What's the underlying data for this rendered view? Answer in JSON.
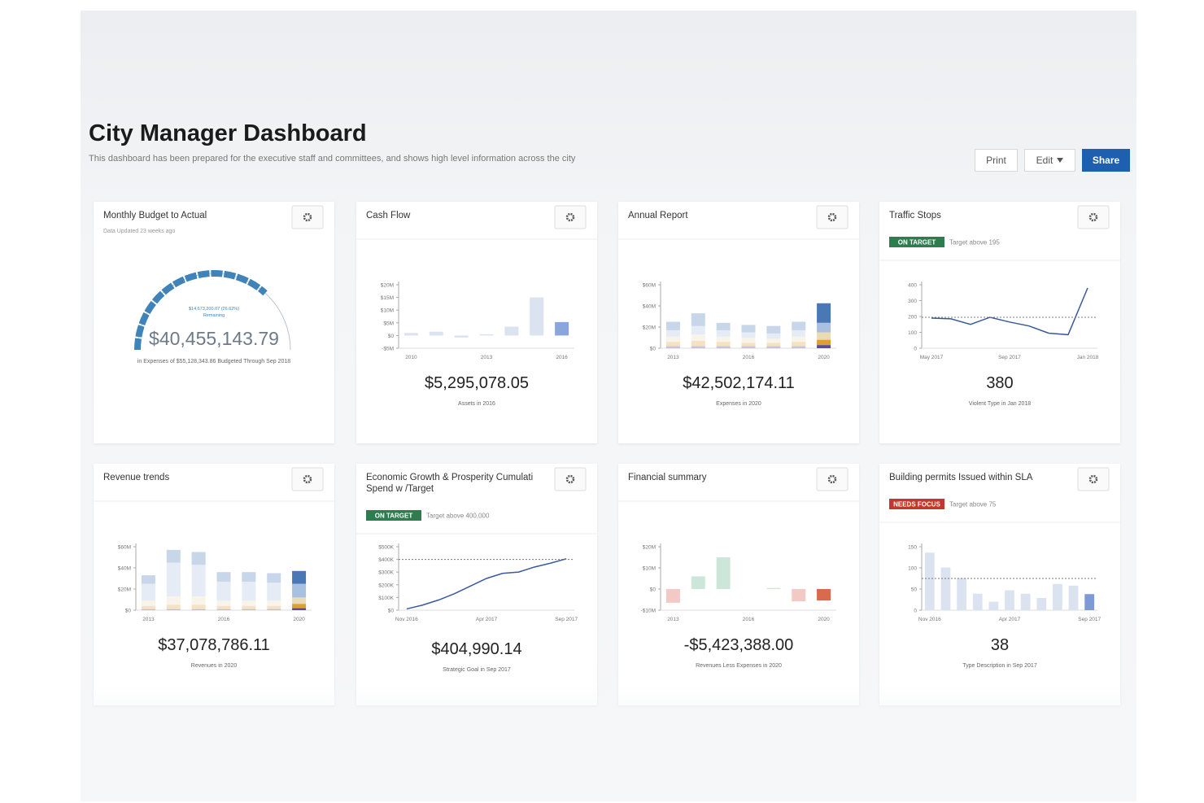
{
  "header": {
    "title": "City Manager Dashboard",
    "subtitle": "This dashboard has been prepared for the executive staff and committees, and shows high level information across the city",
    "buttons": [
      "Print",
      "Edit",
      "Share"
    ]
  },
  "cards": [
    {
      "title": [
        "Monthly Budget to Actual"
      ],
      "subtitle": "Data Updated 23 weeks ago",
      "value": "$40,455,143.79",
      "caption": "in Expenses of $55,128,343.86 Budgeted Through Sep 2018",
      "chart": {
        "type": "gauge",
        "value": 40455143.79,
        "max": 55128343.86,
        "color": "#3f83b8",
        "center_label": "$14,673,200.07 (26.62%)",
        "center_sublabel": "Remaining"
      }
    },
    {
      "title": [
        "Cash Flow"
      ],
      "value": "$5,295,078.05",
      "caption": "Assets in 2016",
      "chart": {
        "type": "bar",
        "categories": [
          "2010",
          null,
          null,
          "2013",
          null,
          null,
          "2016"
        ],
        "values": [
          1000000,
          1500000,
          -800000,
          500000,
          3500000,
          15000000,
          5295078.05
        ],
        "color": "#dbe3f1",
        "highlight_color": "#8aa6dc",
        "ylim": [
          -5000000,
          20000000
        ],
        "yticks": [
          {
            "value": -5000000,
            "label": "-$5M"
          },
          {
            "value": 0,
            "label": "$0"
          },
          {
            "value": 5000000,
            "label": "$5M"
          },
          {
            "value": 10000000,
            "label": "$10M"
          },
          {
            "value": 15000000,
            "label": "$15M"
          },
          {
            "value": 20000000,
            "label": "$20M"
          }
        ]
      }
    },
    {
      "title": [
        "Annual Report"
      ],
      "value": "$42,502,174.11",
      "caption": "Expenses in 2020",
      "chart": {
        "type": "stacked-bar",
        "categories": [
          "2013",
          null,
          null,
          "2016",
          null,
          null,
          "2020"
        ],
        "ylim": [
          0,
          60000000
        ],
        "yticks": [
          {
            "value": 0,
            "label": "$0"
          },
          {
            "value": 20000000,
            "label": "$20M"
          },
          {
            "value": 40000000,
            "label": "$40M"
          },
          {
            "value": 60000000,
            "label": "$60M"
          }
        ],
        "series": [
          {
            "color": "#5b4b9b",
            "values": [
              2000000,
              2000000,
              2000000,
              2000000,
              2000000,
              2000000,
              3000000
            ]
          },
          {
            "color": "#e0a030",
            "values": [
              4000000,
              5000000,
              4000000,
              3000000,
              3000000,
              4000000,
              5000000
            ]
          },
          {
            "color": "#e9dcb5",
            "values": [
              5000000,
              6000000,
              5000000,
              5000000,
              4000000,
              5000000,
              7000000
            ]
          },
          {
            "color": "#a9c0e0",
            "values": [
              6000000,
              8000000,
              6000000,
              5000000,
              5000000,
              6000000,
              9000000
            ]
          },
          {
            "color": "#4a78b5",
            "values": [
              8000000,
              12000000,
              7000000,
              7000000,
              7000000,
              8000000,
              18502174.11
            ]
          }
        ]
      }
    },
    {
      "title": [
        "Traffic Stops"
      ],
      "badge": "ON TARGET",
      "badge_color": "#2e7d4f",
      "target_text": "Target above 195",
      "value": "380",
      "caption": "Violent Type in Jan 2018",
      "chart": {
        "type": "line",
        "categories": [
          "May 2017",
          null,
          null,
          null,
          "Sep 2017",
          null,
          null,
          null,
          "Jan 2018"
        ],
        "values": [
          190,
          185,
          150,
          195,
          165,
          140,
          95,
          85,
          380
        ],
        "target": 195,
        "color": "#3a5a9a",
        "ylim": [
          0,
          400
        ],
        "yticks": [
          0,
          100,
          200,
          300,
          400
        ]
      }
    },
    {
      "title": [
        "Revenue trends"
      ],
      "value": "$37,078,786.11",
      "caption": "Revenues in 2020",
      "chart": {
        "type": "stacked-bar",
        "categories": [
          "2013",
          null,
          null,
          "2016",
          null,
          null,
          "2020"
        ],
        "ylim": [
          0,
          60000000
        ],
        "yticks": [
          {
            "value": 0,
            "label": "$0"
          },
          {
            "value": 20000000,
            "label": "$20M"
          },
          {
            "value": 40000000,
            "label": "$40M"
          },
          {
            "value": 60000000,
            "label": "$60M"
          }
        ],
        "series": [
          {
            "color": "#5b4b9b",
            "values": [
              1000000,
              1000000,
              1000000,
              1000000,
              1000000,
              1000000,
              2000000
            ]
          },
          {
            "color": "#e0a030",
            "values": [
              3000000,
              4000000,
              4000000,
              3000000,
              3000000,
              3000000,
              4000000
            ]
          },
          {
            "color": "#e9dcb5",
            "values": [
              5000000,
              8000000,
              8000000,
              5000000,
              5000000,
              5000000,
              6000000
            ]
          },
          {
            "color": "#a9c0e0",
            "values": [
              16000000,
              32000000,
              30000000,
              18000000,
              18000000,
              17000000,
              13000000
            ]
          },
          {
            "color": "#4a78b5",
            "values": [
              8000000,
              12000000,
              12000000,
              9000000,
              9000000,
              9000000,
              12078786.11
            ]
          }
        ]
      }
    },
    {
      "title": [
        "Economic Growth & Prosperity Cumulati",
        "Spend w /Target"
      ],
      "badge": "ON TARGET",
      "badge_color": "#2e7d4f",
      "target_text": "Target above 400,000",
      "value": "$404,990.14",
      "caption": "Strategic Goal in Sep 2017",
      "chart": {
        "type": "line",
        "categories": [
          "Nov 2016",
          null,
          null,
          null,
          null,
          "Apr 2017",
          null,
          null,
          null,
          null,
          "Sep 2017"
        ],
        "values": [
          10000,
          40000,
          80000,
          130000,
          190000,
          250000,
          290000,
          300000,
          340000,
          370000,
          404990.14
        ],
        "target": 400000,
        "color": "#3a5a9a",
        "ylim": [
          0,
          500000
        ],
        "yticks": [
          {
            "value": 0,
            "label": "$0"
          },
          {
            "value": 100000,
            "label": "$100K"
          },
          {
            "value": 200000,
            "label": "$200K"
          },
          {
            "value": 300000,
            "label": "$300K"
          },
          {
            "value": 400000,
            "label": "$400K"
          },
          {
            "value": 500000,
            "label": "$500K"
          }
        ]
      }
    },
    {
      "title": [
        "Financial summary"
      ],
      "value": "-$5,423,388.00",
      "caption": "Revenues Less Expenses in 2020",
      "chart": {
        "type": "bar",
        "categories": [
          "2013",
          null,
          null,
          "2016",
          null,
          null,
          "2020"
        ],
        "values": [
          -6500000,
          6000000,
          15000000,
          0,
          500000,
          -5800000,
          -5423388
        ],
        "positive_color": "#cde6da",
        "negative_color": "#f3c9c6",
        "highlight_color": "#d9694f",
        "ylim": [
          -10000000,
          20000000
        ],
        "yticks": [
          {
            "value": -10000000,
            "label": "-$10M"
          },
          {
            "value": 0,
            "label": "$0"
          },
          {
            "value": 10000000,
            "label": "$10M"
          },
          {
            "value": 20000000,
            "label": "$20M"
          }
        ]
      }
    },
    {
      "title": [
        "Building permits Issued within SLA"
      ],
      "badge": "NEEDS FOCUS",
      "badge_color": "#c0392b",
      "target_text": "Target above 75",
      "value": "38",
      "caption": "Type Description in Sep 2017",
      "chart": {
        "type": "bar",
        "categories": [
          "Nov 2016",
          null,
          null,
          null,
          null,
          "Apr 2017",
          null,
          null,
          null,
          null,
          "Sep 2017"
        ],
        "values": [
          136,
          101,
          76,
          39,
          20,
          47,
          39,
          29,
          62,
          58,
          38
        ],
        "target": 75,
        "color": "#dbe3f1",
        "highlight_color": "#7d9ad6",
        "ylim": [
          0,
          150
        ],
        "yticks": [
          0,
          50,
          100,
          150
        ]
      }
    }
  ]
}
